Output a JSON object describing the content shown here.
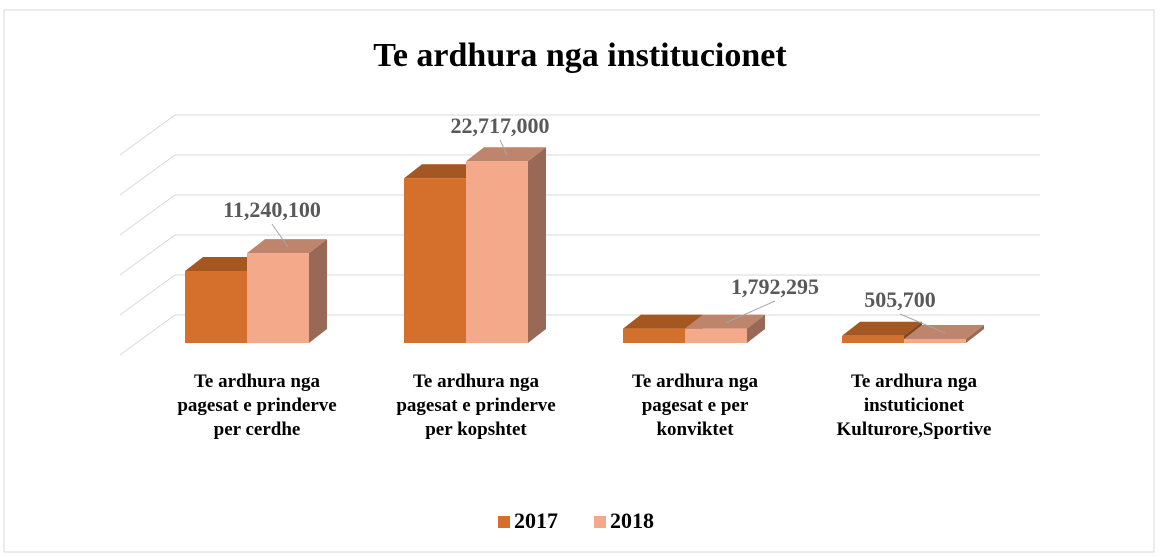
{
  "chart_data": {
    "type": "bar3d",
    "title": "Te ardhura nga institucionet",
    "categories": [
      "Te ardhura nga pagesat e prinderve per cerdhe",
      "Te ardhura nga pagesat e prinderve per kopshtet",
      "Te ardhura nga pagesat e  per konviktet",
      "Te ardhura nga instuticionet Kulturore,Sportive"
    ],
    "series": [
      {
        "name": "2017",
        "color": "#d4702c",
        "values": [
          9000000,
          20600000,
          1800000,
          900000
        ]
      },
      {
        "name": "2018",
        "color": "#f4a98a",
        "values": [
          11240100,
          22717000,
          1792295,
          505700
        ],
        "value_labels": [
          "11,240,100",
          "22,717,000",
          "1,792,295",
          "505,700"
        ]
      }
    ],
    "ylim": [
      0,
      25000000
    ],
    "yticks": [
      0,
      5000000,
      10000000,
      15000000,
      20000000,
      25000000
    ],
    "grid": true,
    "legend": "bottom"
  }
}
